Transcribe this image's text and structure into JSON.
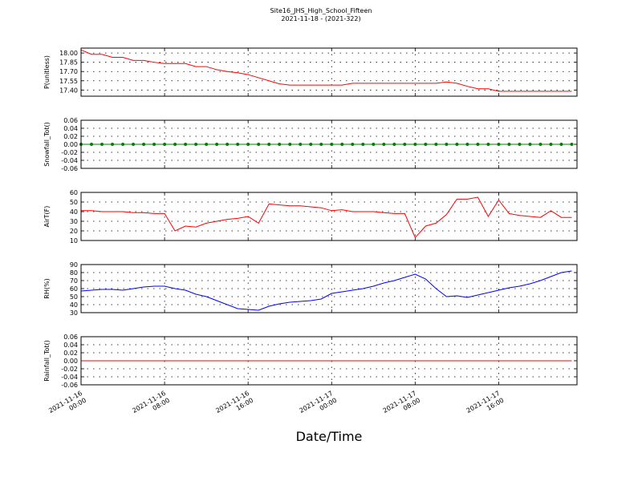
{
  "title": "Site16_JHS_High_School_Fifteen",
  "subtitle": "2021-11-18 - (2021-322)",
  "x_label": "Date/Time",
  "chart_data": [
    {
      "type": "line",
      "y_label": "P(unitless)",
      "grid": true,
      "x": [
        "2021-11-16 00:00",
        "2021-11-16 01:00",
        "2021-11-16 02:00",
        "2021-11-16 03:00",
        "2021-11-16 04:00",
        "2021-11-16 05:00",
        "2021-11-16 06:00",
        "2021-11-16 07:00",
        "2021-11-16 08:00",
        "2021-11-16 09:00",
        "2021-11-16 10:00",
        "2021-11-16 11:00",
        "2021-11-16 12:00",
        "2021-11-16 13:00",
        "2021-11-16 14:00",
        "2021-11-16 15:00",
        "2021-11-16 16:00",
        "2021-11-16 17:00",
        "2021-11-16 18:00",
        "2021-11-16 19:00",
        "2021-11-16 20:00",
        "2021-11-16 21:00",
        "2021-11-16 22:00",
        "2021-11-16 23:00",
        "2021-11-17 00:00",
        "2021-11-17 01:00",
        "2021-11-17 02:00",
        "2021-11-17 03:00",
        "2021-11-17 04:00",
        "2021-11-17 05:00",
        "2021-11-17 06:00",
        "2021-11-17 07:00",
        "2021-11-17 08:00",
        "2021-11-17 09:00",
        "2021-11-17 10:00",
        "2021-11-17 11:00",
        "2021-11-17 12:00",
        "2021-11-17 13:00",
        "2021-11-17 14:00",
        "2021-11-17 15:00",
        "2021-11-17 16:00",
        "2021-11-17 17:00",
        "2021-11-17 18:00",
        "2021-11-17 19:00",
        "2021-11-17 20:00",
        "2021-11-17 21:00",
        "2021-11-17 22:00",
        "2021-11-17 23:00"
      ],
      "series": [
        {
          "color": "#ff0000",
          "values": [
            18.05,
            17.98,
            17.98,
            17.93,
            17.93,
            17.88,
            17.88,
            17.85,
            17.83,
            17.83,
            17.83,
            17.78,
            17.78,
            17.73,
            17.7,
            17.68,
            17.65,
            17.6,
            17.55,
            17.5,
            17.48,
            17.48,
            17.48,
            17.48,
            17.48,
            17.48,
            17.51,
            17.51,
            17.51,
            17.51,
            17.51,
            17.51,
            17.51,
            17.51,
            17.51,
            17.53,
            17.51,
            17.46,
            17.42,
            17.42,
            17.38,
            17.38,
            17.38,
            17.38,
            17.38,
            17.38,
            17.38,
            17.38
          ]
        }
      ],
      "xlim": [
        "2021-11-16 00:00",
        "2021-11-17 23:30"
      ],
      "ylim": [
        17.3,
        18.08
      ],
      "yticks": [
        {
          "value": 17.4,
          "label": "17.40"
        },
        {
          "value": 17.55,
          "label": "17.55"
        },
        {
          "value": 17.7,
          "label": "17.70"
        },
        {
          "value": 17.85,
          "label": "17.85"
        },
        {
          "value": 18,
          "label": "18.00"
        }
      ]
    },
    {
      "type": "line",
      "y_label": "Snowfall_Tot()",
      "grid": true,
      "markers": true,
      "x": [
        "2021-11-16 00:00",
        "2021-11-16 01:00",
        "2021-11-16 02:00",
        "2021-11-16 03:00",
        "2021-11-16 04:00",
        "2021-11-16 05:00",
        "2021-11-16 06:00",
        "2021-11-16 07:00",
        "2021-11-16 08:00",
        "2021-11-16 09:00",
        "2021-11-16 10:00",
        "2021-11-16 11:00",
        "2021-11-16 12:00",
        "2021-11-16 13:00",
        "2021-11-16 14:00",
        "2021-11-16 15:00",
        "2021-11-16 16:00",
        "2021-11-16 17:00",
        "2021-11-16 18:00",
        "2021-11-16 19:00",
        "2021-11-16 20:00",
        "2021-11-16 21:00",
        "2021-11-16 22:00",
        "2021-11-16 23:00",
        "2021-11-17 00:00",
        "2021-11-17 01:00",
        "2021-11-17 02:00",
        "2021-11-17 03:00",
        "2021-11-17 04:00",
        "2021-11-17 05:00",
        "2021-11-17 06:00",
        "2021-11-17 07:00",
        "2021-11-17 08:00",
        "2021-11-17 09:00",
        "2021-11-17 10:00",
        "2021-11-17 11:00",
        "2021-11-17 12:00",
        "2021-11-17 13:00",
        "2021-11-17 14:00",
        "2021-11-17 15:00",
        "2021-11-17 16:00",
        "2021-11-17 17:00",
        "2021-11-17 18:00",
        "2021-11-17 19:00",
        "2021-11-17 20:00",
        "2021-11-17 21:00",
        "2021-11-17 22:00",
        "2021-11-17 23:00"
      ],
      "series": [
        {
          "color": "#008000",
          "values": [
            0,
            0,
            0,
            0,
            0,
            0,
            0,
            0,
            0,
            0,
            0,
            0,
            0,
            0,
            0,
            0,
            0,
            0,
            0,
            0,
            0,
            0,
            0,
            0,
            0,
            0,
            0,
            0,
            0,
            0,
            0,
            0,
            0,
            0,
            0,
            0,
            0,
            0,
            0,
            0,
            0,
            0,
            0,
            0,
            0,
            0,
            0,
            0
          ]
        }
      ],
      "xlim": [
        "2021-11-16 00:00",
        "2021-11-17 23:30"
      ],
      "ylim": [
        -0.06,
        0.06
      ],
      "yticks": [
        -0.06,
        -0.04,
        -0.02,
        {
          "value": 0,
          "label": "0.00"
        },
        0.02,
        0.04,
        0.06
      ]
    },
    {
      "type": "line",
      "y_label": "AirT(F)",
      "grid": true,
      "x": [
        "2021-11-16 00:00",
        "2021-11-16 01:00",
        "2021-11-16 02:00",
        "2021-11-16 03:00",
        "2021-11-16 04:00",
        "2021-11-16 05:00",
        "2021-11-16 06:00",
        "2021-11-16 07:00",
        "2021-11-16 08:00",
        "2021-11-16 09:00",
        "2021-11-16 10:00",
        "2021-11-16 11:00",
        "2021-11-16 12:00",
        "2021-11-16 13:00",
        "2021-11-16 14:00",
        "2021-11-16 15:00",
        "2021-11-16 16:00",
        "2021-11-16 17:00",
        "2021-11-16 18:00",
        "2021-11-16 19:00",
        "2021-11-16 20:00",
        "2021-11-16 21:00",
        "2021-11-16 22:00",
        "2021-11-16 23:00",
        "2021-11-17 00:00",
        "2021-11-17 01:00",
        "2021-11-17 02:00",
        "2021-11-17 03:00",
        "2021-11-17 04:00",
        "2021-11-17 05:00",
        "2021-11-17 06:00",
        "2021-11-17 07:00",
        "2021-11-17 08:00",
        "2021-11-17 09:00",
        "2021-11-17 10:00",
        "2021-11-17 11:00",
        "2021-11-17 12:00",
        "2021-11-17 13:00",
        "2021-11-17 14:00",
        "2021-11-17 15:00",
        "2021-11-17 16:00",
        "2021-11-17 17:00",
        "2021-11-17 18:00",
        "2021-11-17 19:00",
        "2021-11-17 20:00",
        "2021-11-17 21:00",
        "2021-11-17 22:00",
        "2021-11-17 23:00"
      ],
      "series": [
        {
          "color": "#ff0000",
          "values": [
            41,
            41,
            40,
            40,
            40,
            39,
            39,
            38,
            38,
            20,
            25,
            24,
            28,
            30,
            32,
            33,
            35,
            28,
            48,
            47,
            46,
            46,
            45,
            44,
            41,
            42,
            40,
            40,
            40,
            39,
            38,
            38,
            13,
            25,
            28,
            37,
            53,
            53,
            55,
            35,
            52,
            38,
            36,
            35,
            34,
            41,
            34,
            34
          ]
        }
      ],
      "xlim": [
        "2021-11-16 00:00",
        "2021-11-17 23:30"
      ],
      "ylim": [
        10,
        60
      ],
      "yticks": [
        10,
        20,
        30,
        40,
        50,
        60
      ]
    },
    {
      "type": "line",
      "y_label": "RH(%)",
      "grid": true,
      "x": [
        "2021-11-16 00:00",
        "2021-11-16 01:00",
        "2021-11-16 02:00",
        "2021-11-16 03:00",
        "2021-11-16 04:00",
        "2021-11-16 05:00",
        "2021-11-16 06:00",
        "2021-11-16 07:00",
        "2021-11-16 08:00",
        "2021-11-16 09:00",
        "2021-11-16 10:00",
        "2021-11-16 11:00",
        "2021-11-16 12:00",
        "2021-11-16 13:00",
        "2021-11-16 14:00",
        "2021-11-16 15:00",
        "2021-11-16 16:00",
        "2021-11-16 17:00",
        "2021-11-16 18:00",
        "2021-11-16 19:00",
        "2021-11-16 20:00",
        "2021-11-16 21:00",
        "2021-11-16 22:00",
        "2021-11-16 23:00",
        "2021-11-17 00:00",
        "2021-11-17 01:00",
        "2021-11-17 02:00",
        "2021-11-17 03:00",
        "2021-11-17 04:00",
        "2021-11-17 05:00",
        "2021-11-17 06:00",
        "2021-11-17 07:00",
        "2021-11-17 08:00",
        "2021-11-17 09:00",
        "2021-11-17 10:00",
        "2021-11-17 11:00",
        "2021-11-17 12:00",
        "2021-11-17 13:00",
        "2021-11-17 14:00",
        "2021-11-17 15:00",
        "2021-11-17 16:00",
        "2021-11-17 17:00",
        "2021-11-17 18:00",
        "2021-11-17 19:00",
        "2021-11-17 20:00",
        "2021-11-17 21:00",
        "2021-11-17 22:00",
        "2021-11-17 23:00"
      ],
      "series": [
        {
          "color": "#0000ff",
          "values": [
            57,
            58,
            59,
            59,
            58,
            60,
            62,
            63,
            63,
            60,
            58,
            53,
            50,
            45,
            40,
            35,
            34,
            33,
            38,
            41,
            43,
            44,
            45,
            47,
            54,
            56,
            58,
            60,
            63,
            67,
            70,
            74,
            78,
            72,
            60,
            50,
            51,
            49,
            52,
            55,
            58,
            61,
            63,
            66,
            70,
            75,
            80,
            82
          ]
        }
      ],
      "xlim": [
        "2021-11-16 00:00",
        "2021-11-17 23:30"
      ],
      "ylim": [
        30,
        90
      ],
      "yticks": [
        30,
        40,
        50,
        60,
        70,
        80,
        90
      ]
    },
    {
      "type": "line",
      "y_label": "Rainfall_Tot()",
      "grid": true,
      "x": [
        "2021-11-16 00:00",
        "2021-11-16 01:00",
        "2021-11-16 02:00",
        "2021-11-16 03:00",
        "2021-11-16 04:00",
        "2021-11-16 05:00",
        "2021-11-16 06:00",
        "2021-11-16 07:00",
        "2021-11-16 08:00",
        "2021-11-16 09:00",
        "2021-11-16 10:00",
        "2021-11-16 11:00",
        "2021-11-16 12:00",
        "2021-11-16 13:00",
        "2021-11-16 14:00",
        "2021-11-16 15:00",
        "2021-11-16 16:00",
        "2021-11-16 17:00",
        "2021-11-16 18:00",
        "2021-11-16 19:00",
        "2021-11-16 20:00",
        "2021-11-16 21:00",
        "2021-11-16 22:00",
        "2021-11-16 23:00",
        "2021-11-17 00:00",
        "2021-11-17 01:00",
        "2021-11-17 02:00",
        "2021-11-17 03:00",
        "2021-11-17 04:00",
        "2021-11-17 05:00",
        "2021-11-17 06:00",
        "2021-11-17 07:00",
        "2021-11-17 08:00",
        "2021-11-17 09:00",
        "2021-11-17 10:00",
        "2021-11-17 11:00",
        "2021-11-17 12:00",
        "2021-11-17 13:00",
        "2021-11-17 14:00",
        "2021-11-17 15:00",
        "2021-11-17 16:00",
        "2021-11-17 17:00",
        "2021-11-17 18:00",
        "2021-11-17 19:00",
        "2021-11-17 20:00",
        "2021-11-17 21:00",
        "2021-11-17 22:00",
        "2021-11-17 23:00"
      ],
      "series": [
        {
          "color": "#ff0000",
          "values": [
            0,
            0,
            0,
            0,
            0,
            0,
            0,
            0,
            0,
            0,
            0,
            0,
            0,
            0,
            0,
            0,
            0,
            0,
            0,
            0,
            0,
            0,
            0,
            0,
            0,
            0,
            0,
            0,
            0,
            0,
            0,
            0,
            0,
            0,
            0,
            0,
            0,
            0,
            0,
            0,
            0,
            0,
            0,
            0,
            0,
            0,
            0,
            0
          ]
        }
      ],
      "xlim": [
        "2021-11-16 00:00",
        "2021-11-17 23:30"
      ],
      "ylim": [
        -0.06,
        0.06
      ],
      "yticks": [
        -0.06,
        -0.04,
        -0.02,
        {
          "value": 0,
          "label": "0.00"
        },
        0.02,
        0.04,
        0.06
      ],
      "xticks": [
        "2021-11-16 00:00",
        "2021-11-16 08:00",
        "2021-11-16 16:00",
        "2021-11-17 00:00",
        "2021-11-17 08:00",
        "2021-11-17 16:00"
      ]
    }
  ]
}
